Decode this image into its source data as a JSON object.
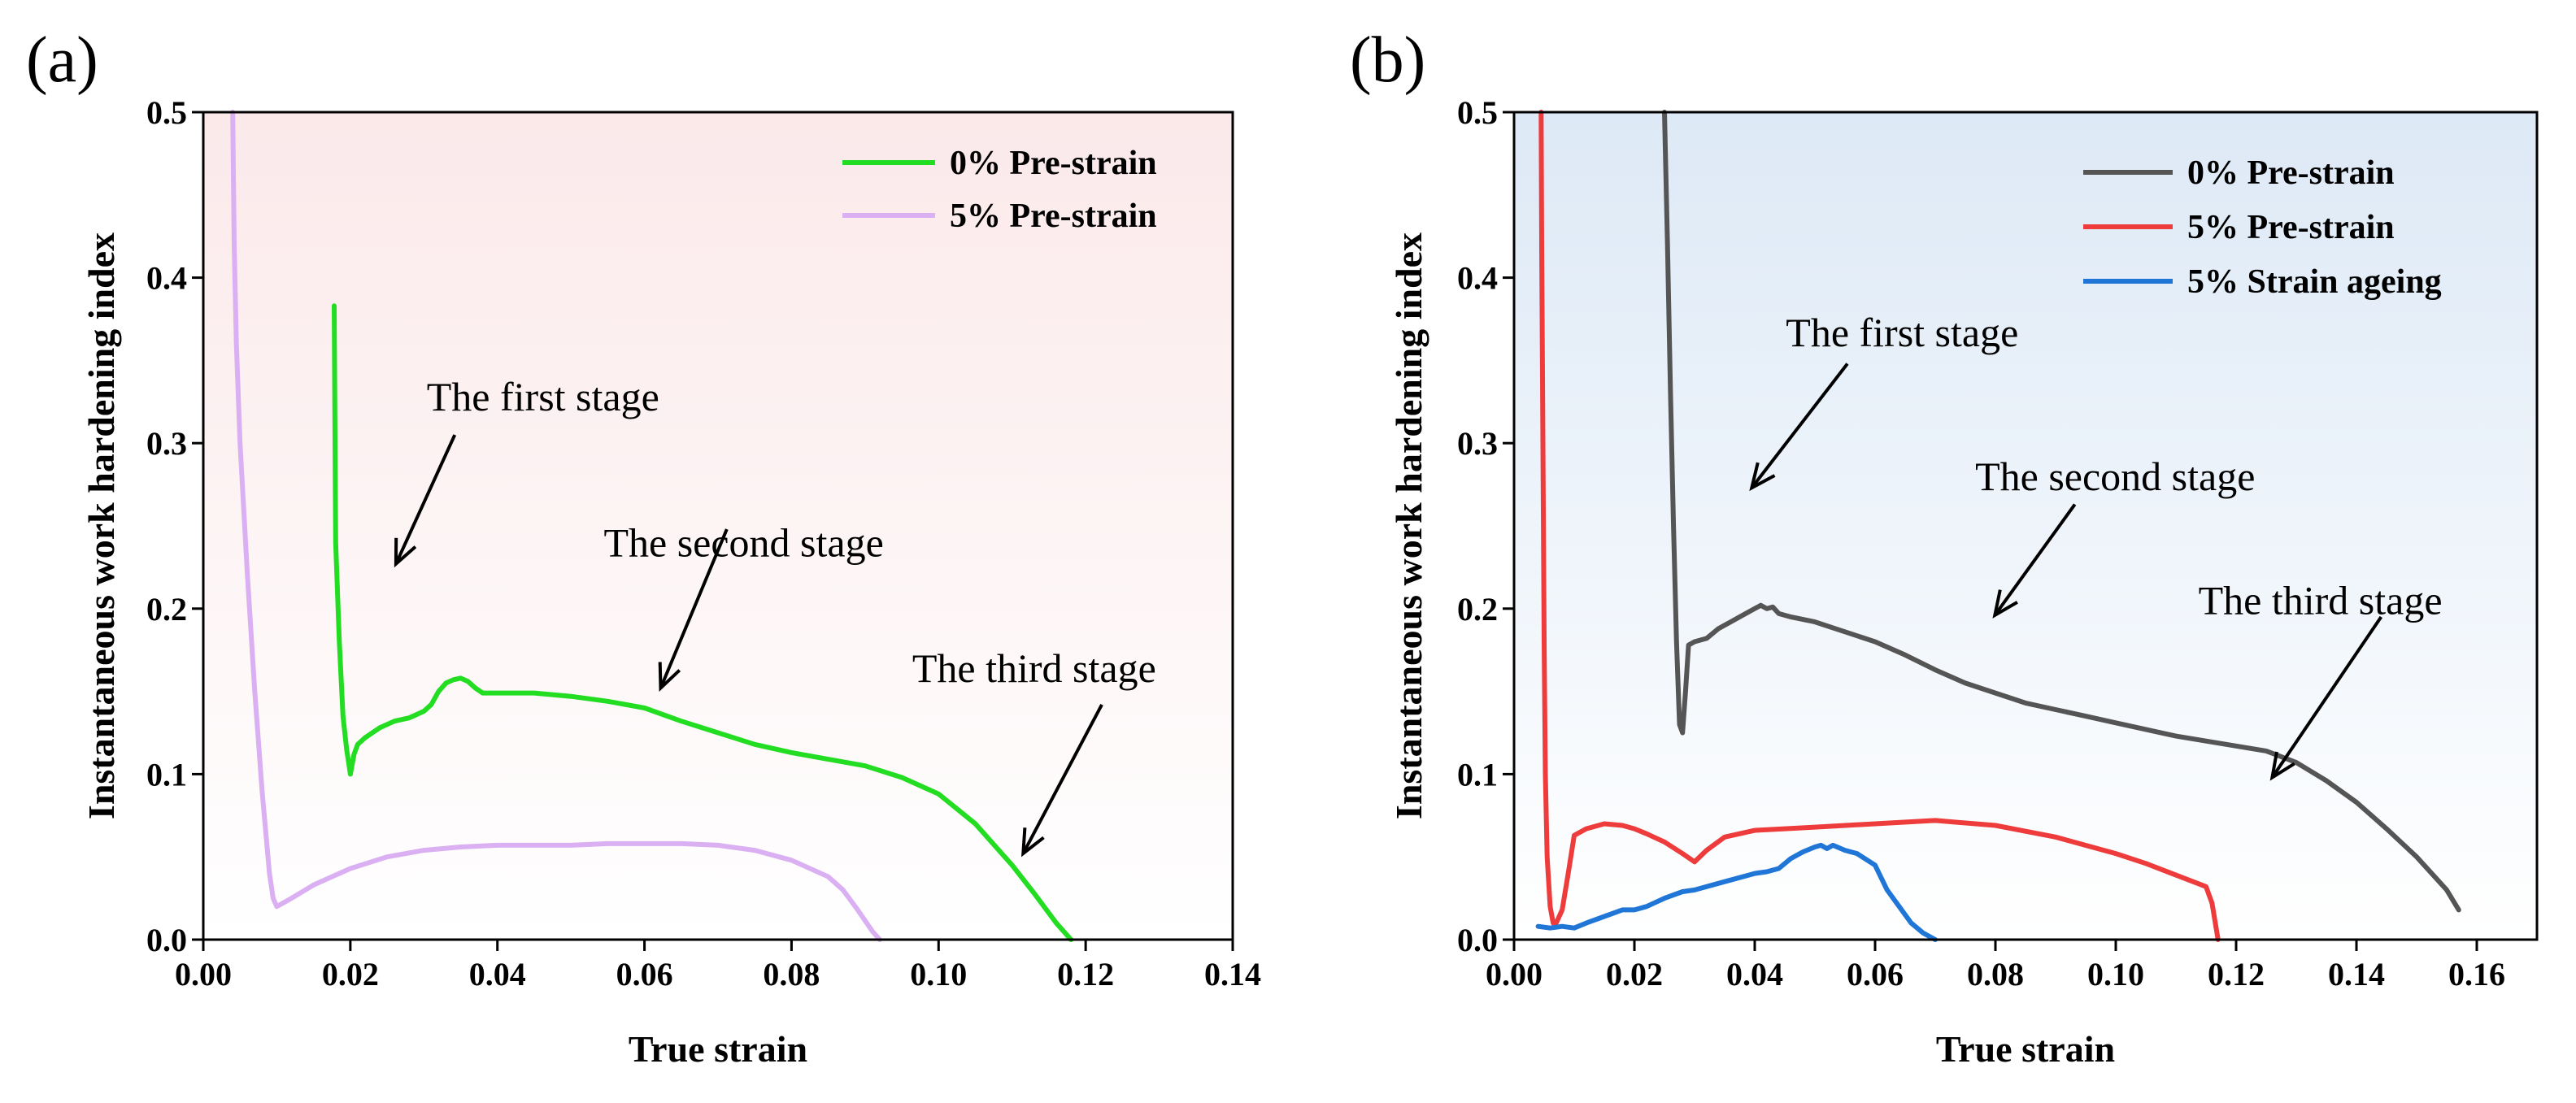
{
  "chart_data": [
    {
      "type": "line",
      "panel_label": "(a)",
      "xlabel": "True strain",
      "ylabel": "Instantaneous work hardening index",
      "xlim": [
        0,
        0.14
      ],
      "ylim": [
        0,
        0.5
      ],
      "xticks": [
        0,
        0.02,
        0.04,
        0.06,
        0.08,
        0.1,
        0.12,
        0.14
      ],
      "xtick_labels": [
        "0.00",
        "0.02",
        "0.04",
        "0.06",
        "0.08",
        "0.10",
        "0.12",
        "0.14"
      ],
      "yticks": [
        0,
        0.1,
        0.2,
        0.3,
        0.4,
        0.5
      ],
      "ytick_labels": [
        "0.0",
        "0.1",
        "0.2",
        "0.3",
        "0.4",
        "0.5"
      ],
      "background": [
        "#fbe9ea",
        "#ffffff"
      ],
      "legend_position": "top-right",
      "series": [
        {
          "name": "0% Pre-strain",
          "color": "#22dd22",
          "x": [
            0.0178,
            0.018,
            0.0185,
            0.019,
            0.0195,
            0.02,
            0.0205,
            0.021,
            0.022,
            0.024,
            0.026,
            0.028,
            0.03,
            0.031,
            0.032,
            0.033,
            0.034,
            0.035,
            0.036,
            0.037,
            0.038,
            0.039,
            0.04,
            0.045,
            0.05,
            0.055,
            0.06,
            0.065,
            0.07,
            0.075,
            0.08,
            0.085,
            0.09,
            0.095,
            0.1,
            0.105,
            0.11,
            0.113,
            0.116,
            0.118
          ],
          "y": [
            0.383,
            0.24,
            0.18,
            0.135,
            0.115,
            0.1,
            0.112,
            0.118,
            0.122,
            0.128,
            0.132,
            0.134,
            0.138,
            0.142,
            0.15,
            0.155,
            0.157,
            0.158,
            0.156,
            0.152,
            0.149,
            0.149,
            0.149,
            0.149,
            0.147,
            0.144,
            0.14,
            0.132,
            0.125,
            0.118,
            0.113,
            0.109,
            0.105,
            0.098,
            0.088,
            0.07,
            0.045,
            0.028,
            0.01,
            0.0
          ]
        },
        {
          "name": "5% Pre-strain",
          "color": "#dab0f2",
          "x": [
            0.004,
            0.0042,
            0.0045,
            0.005,
            0.006,
            0.007,
            0.008,
            0.009,
            0.0095,
            0.01,
            0.012,
            0.015,
            0.02,
            0.025,
            0.03,
            0.035,
            0.04,
            0.045,
            0.05,
            0.055,
            0.06,
            0.065,
            0.07,
            0.075,
            0.08,
            0.085,
            0.087,
            0.089,
            0.091,
            0.092
          ],
          "y": [
            0.5,
            0.42,
            0.36,
            0.3,
            0.22,
            0.15,
            0.09,
            0.04,
            0.025,
            0.02,
            0.025,
            0.033,
            0.043,
            0.05,
            0.054,
            0.056,
            0.057,
            0.057,
            0.057,
            0.058,
            0.058,
            0.058,
            0.057,
            0.054,
            0.048,
            0.038,
            0.03,
            0.018,
            0.005,
            0.0
          ]
        }
      ],
      "annotations": [
        {
          "text": "The first stage",
          "label_at": [
            0.0462,
            0.328
          ],
          "arrow_from": [
            0.0342,
            0.305
          ],
          "arrow_to": [
            0.0262,
            0.227
          ]
        },
        {
          "text": "The second stage",
          "label_at": [
            0.0735,
            0.24
          ],
          "arrow_from": [
            0.0712,
            0.248
          ],
          "arrow_to": [
            0.0622,
            0.152
          ]
        },
        {
          "text": "The third stage",
          "label_at": [
            0.113,
            0.164
          ],
          "arrow_from": [
            0.1222,
            0.142
          ],
          "arrow_to": [
            0.1115,
            0.052
          ]
        }
      ]
    },
    {
      "type": "line",
      "panel_label": "(b)",
      "xlabel": "True strain",
      "ylabel": "Instantaneous work hardening index",
      "xlim": [
        0,
        0.17
      ],
      "ylim": [
        0,
        0.5
      ],
      "xticks": [
        0,
        0.02,
        0.04,
        0.06,
        0.08,
        0.1,
        0.12,
        0.14,
        0.16
      ],
      "xtick_labels": [
        "0.00",
        "0.02",
        "0.04",
        "0.06",
        "0.08",
        "0.10",
        "0.12",
        "0.14",
        "0.16"
      ],
      "yticks": [
        0,
        0.1,
        0.2,
        0.3,
        0.4,
        0.5
      ],
      "ytick_labels": [
        "0.0",
        "0.1",
        "0.2",
        "0.3",
        "0.4",
        "0.5"
      ],
      "background": [
        "#dde9f6",
        "#ffffff"
      ],
      "legend_position": "top-right",
      "series": [
        {
          "name": "0% Pre-strain",
          "color": "#555555",
          "x": [
            0.025,
            0.0255,
            0.026,
            0.0265,
            0.027,
            0.0275,
            0.028,
            0.0285,
            0.029,
            0.03,
            0.032,
            0.034,
            0.036,
            0.038,
            0.04,
            0.041,
            0.042,
            0.043,
            0.044,
            0.046,
            0.05,
            0.055,
            0.06,
            0.065,
            0.07,
            0.075,
            0.08,
            0.085,
            0.09,
            0.095,
            0.1,
            0.105,
            0.11,
            0.115,
            0.12,
            0.125,
            0.13,
            0.135,
            0.14,
            0.145,
            0.15,
            0.155,
            0.157
          ],
          "y": [
            0.5,
            0.42,
            0.33,
            0.25,
            0.18,
            0.13,
            0.125,
            0.15,
            0.178,
            0.18,
            0.182,
            0.188,
            0.192,
            0.196,
            0.2,
            0.202,
            0.2,
            0.201,
            0.197,
            0.195,
            0.192,
            0.186,
            0.18,
            0.172,
            0.163,
            0.155,
            0.149,
            0.143,
            0.139,
            0.135,
            0.131,
            0.127,
            0.123,
            0.12,
            0.117,
            0.114,
            0.107,
            0.096,
            0.083,
            0.067,
            0.05,
            0.03,
            0.018
          ]
        },
        {
          "name": "5% Pre-strain",
          "color": "#ee3b3b",
          "x": [
            0.0045,
            0.0046,
            0.0048,
            0.005,
            0.0052,
            0.0055,
            0.006,
            0.0065,
            0.007,
            0.008,
            0.009,
            0.01,
            0.012,
            0.015,
            0.018,
            0.02,
            0.022,
            0.025,
            0.028,
            0.03,
            0.032,
            0.035,
            0.04,
            0.045,
            0.05,
            0.06,
            0.07,
            0.08,
            0.09,
            0.1,
            0.105,
            0.11,
            0.115,
            0.116,
            0.117
          ],
          "y": [
            0.5,
            0.42,
            0.3,
            0.18,
            0.1,
            0.05,
            0.02,
            0.01,
            0.01,
            0.018,
            0.04,
            0.063,
            0.067,
            0.07,
            0.069,
            0.067,
            0.064,
            0.059,
            0.052,
            0.047,
            0.054,
            0.062,
            0.066,
            0.067,
            0.068,
            0.07,
            0.072,
            0.069,
            0.062,
            0.052,
            0.046,
            0.039,
            0.032,
            0.022,
            0.0
          ]
        },
        {
          "name": "5% Strain ageing",
          "color": "#1f76d6",
          "x": [
            0.004,
            0.006,
            0.008,
            0.01,
            0.012,
            0.015,
            0.018,
            0.02,
            0.022,
            0.025,
            0.028,
            0.03,
            0.035,
            0.04,
            0.042,
            0.044,
            0.046,
            0.048,
            0.05,
            0.051,
            0.052,
            0.053,
            0.055,
            0.057,
            0.06,
            0.062,
            0.064,
            0.066,
            0.068,
            0.07
          ],
          "y": [
            0.008,
            0.007,
            0.008,
            0.007,
            0.01,
            0.014,
            0.018,
            0.018,
            0.02,
            0.025,
            0.029,
            0.03,
            0.035,
            0.04,
            0.041,
            0.043,
            0.049,
            0.053,
            0.056,
            0.057,
            0.055,
            0.057,
            0.054,
            0.052,
            0.045,
            0.03,
            0.02,
            0.01,
            0.004,
            0.0
          ]
        }
      ],
      "annotations": [
        {
          "text": "The first stage",
          "label_at": [
            0.0645,
            0.367
          ],
          "arrow_from": [
            0.0554,
            0.348
          ],
          "arrow_to": [
            0.0395,
            0.273
          ]
        },
        {
          "text": "The second stage",
          "label_at": [
            0.0999,
            0.28
          ],
          "arrow_from": [
            0.0932,
            0.263
          ],
          "arrow_to": [
            0.0799,
            0.196
          ]
        },
        {
          "text": "The third stage",
          "label_at": [
            0.134,
            0.205
          ],
          "arrow_from": [
            0.1441,
            0.195
          ],
          "arrow_to": [
            0.126,
            0.098
          ]
        }
      ]
    }
  ]
}
